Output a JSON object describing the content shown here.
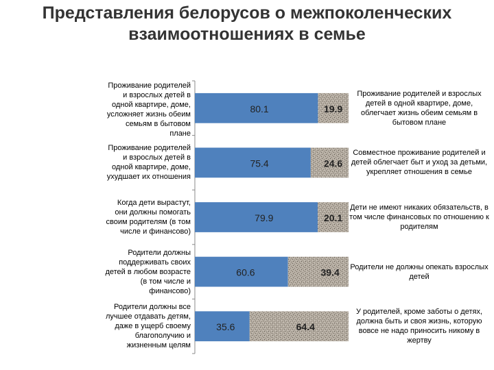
{
  "title": "Представления белорусов о межпоколенческих взаимоотношениях в семье",
  "chart_data": {
    "type": "bar",
    "orientation": "horizontal",
    "stacked": true,
    "percent_stacked": true,
    "xlim": [
      0,
      100
    ],
    "grid": false,
    "legend": "none",
    "categories": [
      "Проживание родителей и взрослых детей в одной квартире, доме, усложняет жизнь обеим семьям в бытовом плане",
      "Проживание родителей и взрослых детей в одной квартире, доме, ухудшает их отношения",
      "Когда дети вырастут, они должны помогать своим родителям (в том числе и финансово)",
      "Родители должны поддерживать своих детей в любом возрасте (в том числе и финансово)",
      "Родители должны все лучшее отдавать детям, даже в ущерб своему благополучию и жизненным целям"
    ],
    "opposite_labels": [
      "Проживание родителей и взрослых детей в одной квартире, доме, облегчает жизнь обеим семьям в бытовом плане",
      "Совместное проживание родителей и детей облегчает быт и уход за детьми, укрепляет отношения в семье",
      "Дети не имеют никаких обязательств, в том числе финансовых по отношению к родителям",
      "Родители не должны опекать взрослых детей",
      "У родителей, кроме заботы о детях, должна быть и своя жизнь, которую вовсе не надо приносить никому в жертву"
    ],
    "series": [
      {
        "values": [
          80.1,
          75.4,
          79.9,
          60.6,
          35.6
        ],
        "color": "#4f81bd"
      },
      {
        "values": [
          19.9,
          24.6,
          20.1,
          39.4,
          64.4
        ],
        "color": "#a39b8f"
      }
    ]
  }
}
